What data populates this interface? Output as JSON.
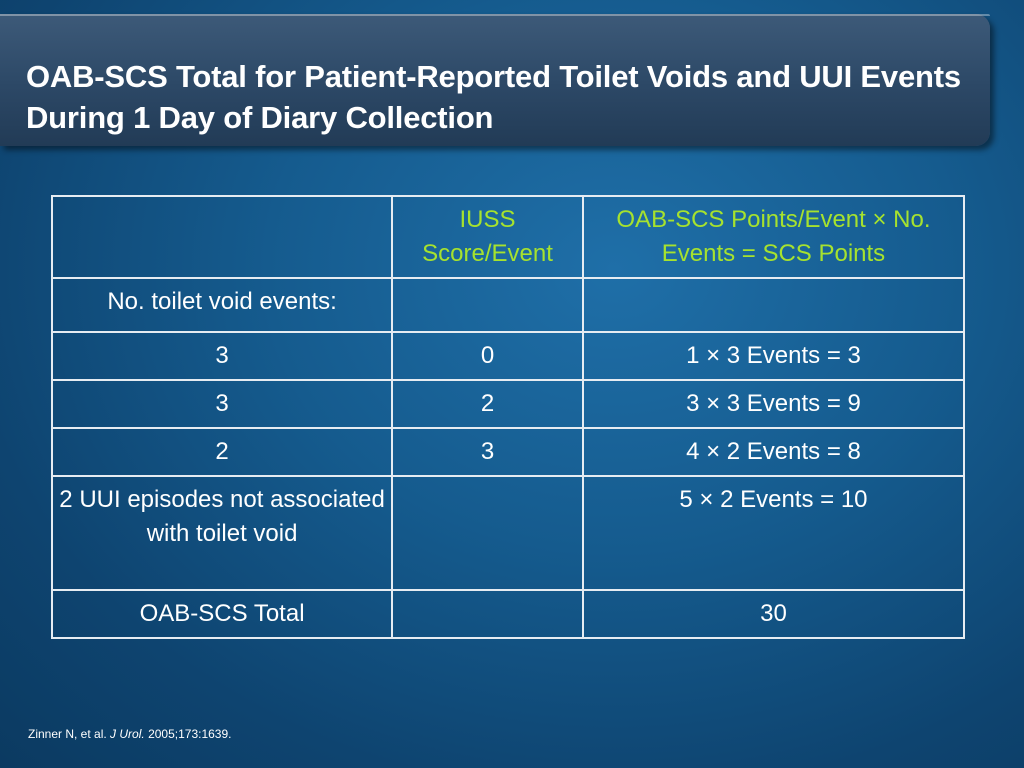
{
  "slide": {
    "title": "OAB-SCS Total for Patient-Reported Toilet Voids and UUI Events During 1 Day of Diary Collection"
  },
  "table": {
    "header": {
      "col1": "",
      "col2": "IUSS Score/Event",
      "col3": "OAB-SCS Points/Event × No. Events = SCS Points",
      "color": "#a6e22e"
    },
    "section_label": "No. toilet void events:",
    "rows": [
      {
        "events": "3",
        "iuss": "0",
        "points": "1 × 3 Events = 3"
      },
      {
        "events": "3",
        "iuss": "2",
        "points": "3 × 3 Events = 9"
      },
      {
        "events": "2",
        "iuss": "3",
        "points": "4 × 2 Events = 8"
      }
    ],
    "uui_row": {
      "label": "2 UUI episodes not associated with toilet void",
      "iuss": "",
      "points": "5 × 2 Events = 10"
    },
    "total_row": {
      "label": "OAB-SCS Total",
      "iuss": "",
      "value": "30"
    }
  },
  "citation": {
    "authors": "Zinner N, et al.",
    "journal": "J Urol.",
    "ref": "2005;173:1639."
  }
}
